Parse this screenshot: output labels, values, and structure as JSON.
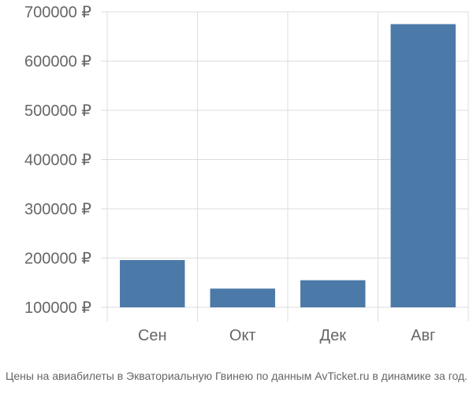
{
  "chart_data": {
    "type": "bar",
    "categories": [
      "Сен",
      "Окт",
      "Дек",
      "Авг"
    ],
    "values": [
      196000,
      138000,
      155000,
      675000
    ],
    "ylim": [
      100000,
      700000
    ],
    "yticks": [
      100000,
      200000,
      300000,
      400000,
      500000,
      600000,
      700000
    ],
    "ytick_labels": [
      "100000 ₽",
      "200000 ₽",
      "300000 ₽",
      "400000 ₽",
      "500000 ₽",
      "600000 ₽",
      "700000 ₽"
    ],
    "grid": true,
    "bar_color": "#4b79a8",
    "caption": "Цены на авиабилеты в Экваториальную Гвинею по данным AvTicket.ru в динамике за год."
  }
}
